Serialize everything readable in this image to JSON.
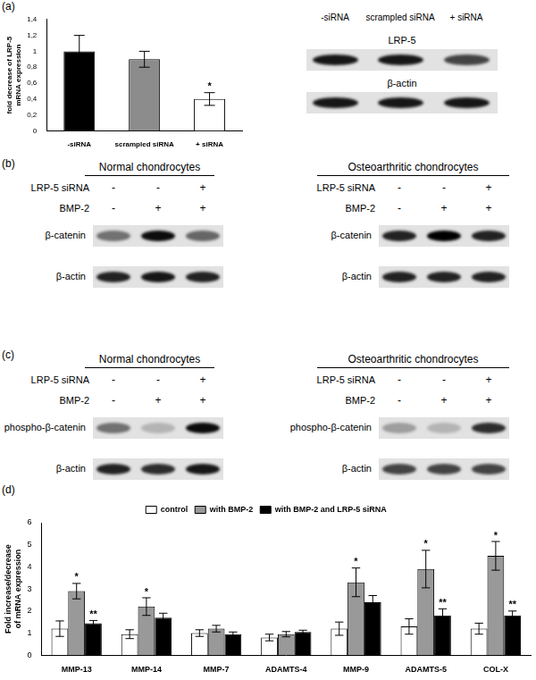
{
  "panel_labels": [
    "(a)",
    "(b)",
    "(c)",
    "(d)"
  ],
  "chart_data": [
    {
      "type": "bar",
      "y_label": "fold decrease of LRP-5 mRNA expression",
      "categories": [
        "-siRNA",
        "scrampled siRNA",
        "+ siRNA"
      ],
      "values": [
        1.0,
        0.9,
        0.4
      ],
      "errors": [
        0.2,
        0.1,
        0.08
      ],
      "annotations": [
        null,
        null,
        "*"
      ],
      "colors": [
        "#000000",
        "#8c8c8c",
        "#ffffff"
      ],
      "ylim": [
        0,
        1.4
      ],
      "yticks": [
        0,
        {
          "value": 0.2,
          "label": "0,2"
        },
        {
          "value": 0.4,
          "label": "0,4"
        },
        {
          "value": 0.6,
          "label": "0,6"
        },
        {
          "value": 0.8,
          "label": "0,8"
        },
        1,
        {
          "value": 1.2,
          "label": "1,2"
        },
        {
          "value": 1.4,
          "label": "1,4"
        }
      ],
      "grid": false
    },
    {
      "type": "bar",
      "y_label": "Fold increase/decrease of mRNA expression",
      "categories": [
        "MMP-13",
        "MMP-14",
        "MMP-7",
        "ADAMTS-4",
        "MMP-9",
        "ADAMTS-5",
        "COL-X"
      ],
      "series": [
        {
          "name": "control",
          "color": "#ffffff",
          "values": [
            1.2,
            0.95,
            1.0,
            0.8,
            1.2,
            1.3,
            1.2
          ],
          "errors": [
            0.35,
            0.2,
            0.15,
            0.15,
            0.3,
            0.35,
            0.25
          ],
          "annotations": [
            null,
            null,
            null,
            null,
            null,
            null,
            null
          ]
        },
        {
          "name": "with BMP-2",
          "color": "#999999",
          "values": [
            2.9,
            2.2,
            1.2,
            0.95,
            3.3,
            3.9,
            4.5
          ],
          "errors": [
            0.35,
            0.4,
            0.15,
            0.12,
            0.65,
            0.85,
            0.65
          ],
          "annotations": [
            "*",
            "*",
            null,
            null,
            "*",
            "*",
            "*"
          ]
        },
        {
          "name": "with BMP-2 and LRP-5 siRNA",
          "color": "#000000",
          "values": [
            1.45,
            1.7,
            0.95,
            1.05,
            2.4,
            1.8,
            1.8
          ],
          "errors": [
            0.12,
            0.2,
            0.1,
            0.08,
            0.3,
            0.3,
            0.2
          ],
          "annotations": [
            "**",
            null,
            null,
            null,
            null,
            "**",
            "**"
          ]
        }
      ],
      "ylim": [
        0,
        6
      ],
      "yticks": [
        0,
        1,
        2,
        3,
        4,
        5,
        6
      ],
      "legend": "top",
      "grid": false
    }
  ],
  "blots": [
    {
      "lanes": [
        "-siRNA",
        "scrampled siRNA",
        "+ siRNA"
      ],
      "rows": [
        {
          "label": "LRP-5",
          "band_intensity": [
            0.9,
            0.9,
            0.7
          ]
        },
        {
          "label": "β-actin",
          "band_intensity": [
            0.9,
            0.9,
            0.9
          ]
        }
      ]
    },
    {
      "title": "Normal chondrocytes",
      "conditions": [
        {
          "label": "LRP-5 siRNA",
          "signs": [
            "-",
            "-",
            "+"
          ]
        },
        {
          "label": "BMP-2",
          "signs": [
            "-",
            "+",
            "+"
          ]
        }
      ],
      "rows": [
        {
          "label": "β-catenin",
          "band_intensity": [
            0.5,
            0.95,
            0.55
          ]
        },
        {
          "label": "β-actin",
          "band_intensity": [
            0.85,
            0.9,
            0.85
          ]
        }
      ]
    },
    {
      "title": "Osteoarthritic chondrocytes",
      "conditions": [
        {
          "label": "LRP-5 siRNA",
          "signs": [
            "-",
            "-",
            "+"
          ]
        },
        {
          "label": "BMP-2",
          "signs": [
            "-",
            "+",
            "+"
          ]
        }
      ],
      "rows": [
        {
          "label": "β-catenin",
          "band_intensity": [
            0.85,
            1.0,
            0.85
          ]
        },
        {
          "label": "β-actin",
          "band_intensity": [
            0.85,
            0.85,
            0.85
          ]
        }
      ]
    },
    {
      "title": "Normal chondrocytes",
      "conditions": [
        {
          "label": "LRP-5 siRNA",
          "signs": [
            "-",
            "-",
            "+"
          ]
        },
        {
          "label": "BMP-2",
          "signs": [
            "-",
            "+",
            "+"
          ]
        }
      ],
      "rows": [
        {
          "label": "phospho-β-catenin",
          "band_intensity": [
            0.5,
            0.2,
            0.95
          ]
        },
        {
          "label": "β-actin",
          "band_intensity": [
            0.85,
            0.8,
            0.9
          ]
        }
      ]
    },
    {
      "title": "Osteoarthritic chondrocytes",
      "conditions": [
        {
          "label": "LRP-5 siRNA",
          "signs": [
            "-",
            "-",
            "+"
          ]
        },
        {
          "label": "BMP-2",
          "signs": [
            "-",
            "+",
            "+"
          ]
        }
      ],
      "rows": [
        {
          "label": "phospho-β-catenin",
          "band_intensity": [
            0.3,
            0.2,
            0.8
          ]
        },
        {
          "label": "β-actin",
          "band_intensity": [
            0.7,
            0.7,
            0.7
          ]
        }
      ]
    }
  ]
}
